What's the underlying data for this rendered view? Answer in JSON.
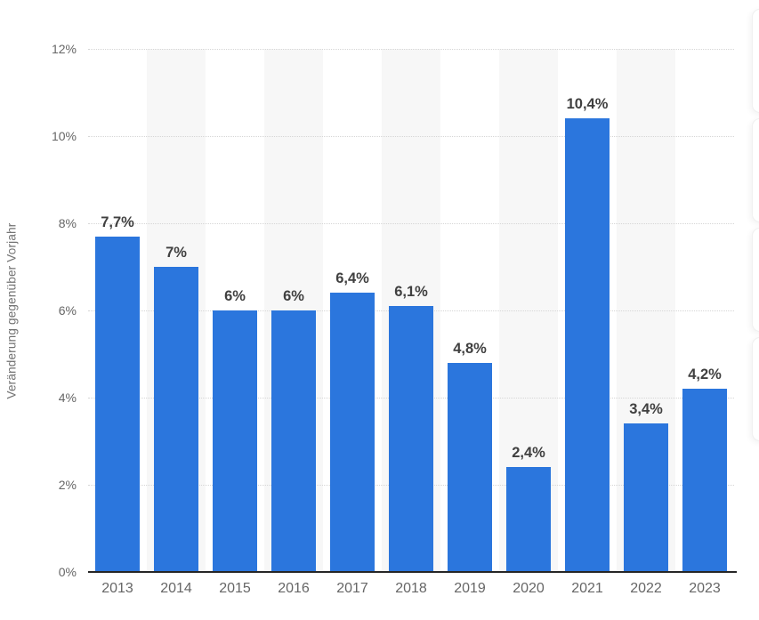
{
  "chart_data": {
    "type": "bar",
    "title": "",
    "xlabel": "",
    "ylabel": "Veränderung gegenüber Vorjahr",
    "categories": [
      "2013",
      "2014",
      "2015",
      "2016",
      "2017",
      "2018",
      "2019",
      "2020",
      "2021",
      "2022",
      "2023"
    ],
    "values": [
      7.7,
      7,
      6,
      6,
      6.4,
      6.1,
      4.8,
      2.4,
      10.4,
      3.4,
      4.2
    ],
    "value_labels": [
      "7,7%",
      "7%",
      "6%",
      "6%",
      "6,4%",
      "6,1%",
      "4,8%",
      "2,4%",
      "10,4%",
      "3,4%",
      "4,2%"
    ],
    "y_ticks": [
      "0%",
      "2%",
      "4%",
      "6%",
      "8%",
      "10%",
      "12%"
    ],
    "y_tick_values": [
      0,
      2,
      4,
      6,
      8,
      10,
      12
    ],
    "ylim": [
      0,
      12
    ],
    "grid": "horizontal-dotted",
    "legend": "none",
    "plot_bands": "alternating light columns behind 2014, 2016, 2018, 2020, 2022",
    "colors": {
      "bar": "#2b76dd",
      "band": "#f7f7f7",
      "gridline": "#d6d6d6",
      "axis_line": "#262626",
      "tick_text": "#666666",
      "value_text": "#404040",
      "background": "#ffffff"
    }
  },
  "right_edge_widgets": {
    "count": 4,
    "description": "partially visible rounded widget cards cut off at right edge"
  }
}
